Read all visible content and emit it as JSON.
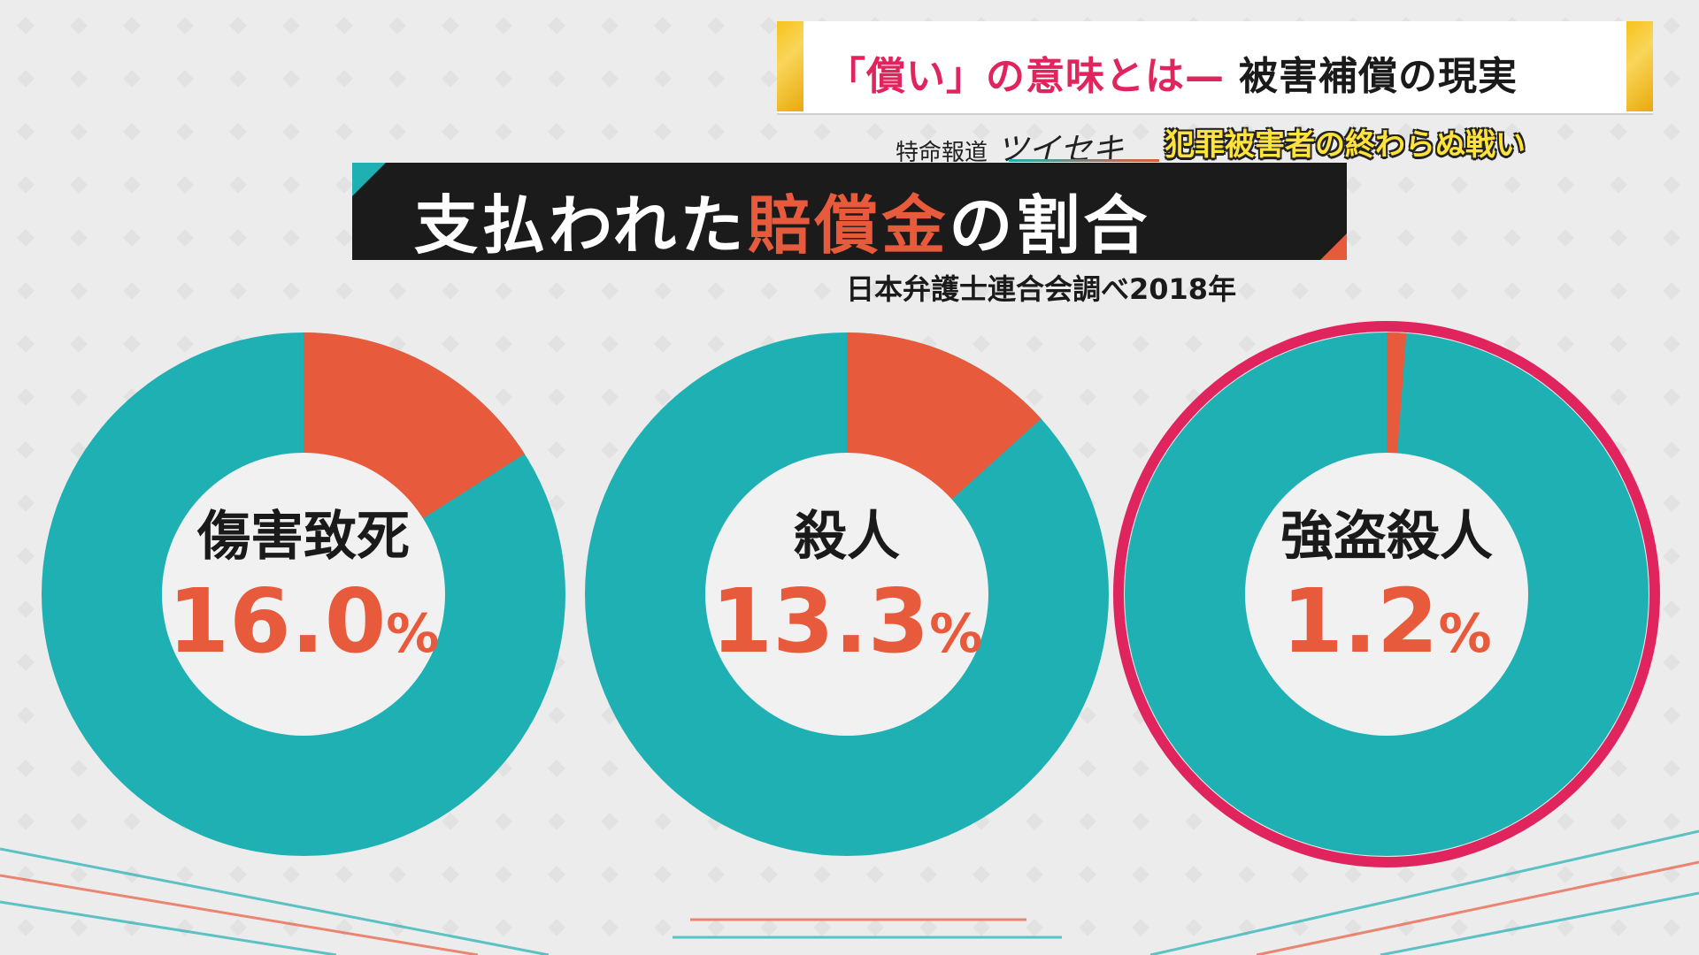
{
  "headline": {
    "red_text": "「償い」の意味とは—",
    "black_text": "被害補償の現実"
  },
  "program": {
    "name": "特命報道",
    "katakana": "ツイセキ",
    "subtitle": "犯罪被害者の終わらぬ戦い"
  },
  "colors": {
    "paid": "#e85a3c",
    "unpaid": "#1fb0b3",
    "highlight_ring": "#e0245e",
    "title_bg": "#1b1b1b"
  },
  "chart_data": {
    "type": "pie",
    "title_parts": [
      "支払われた",
      "賠償金",
      "の割合"
    ],
    "source": "日本弁護士連合会調べ2018年",
    "unit": "%",
    "series": [
      {
        "label": "傷害致死",
        "value": 16.0,
        "display": "16.0",
        "highlight": false
      },
      {
        "label": "殺人",
        "value": 13.3,
        "display": "13.3",
        "highlight": false
      },
      {
        "label": "強盗殺人",
        "value": 1.2,
        "display": "1.2",
        "highlight": true
      }
    ]
  }
}
